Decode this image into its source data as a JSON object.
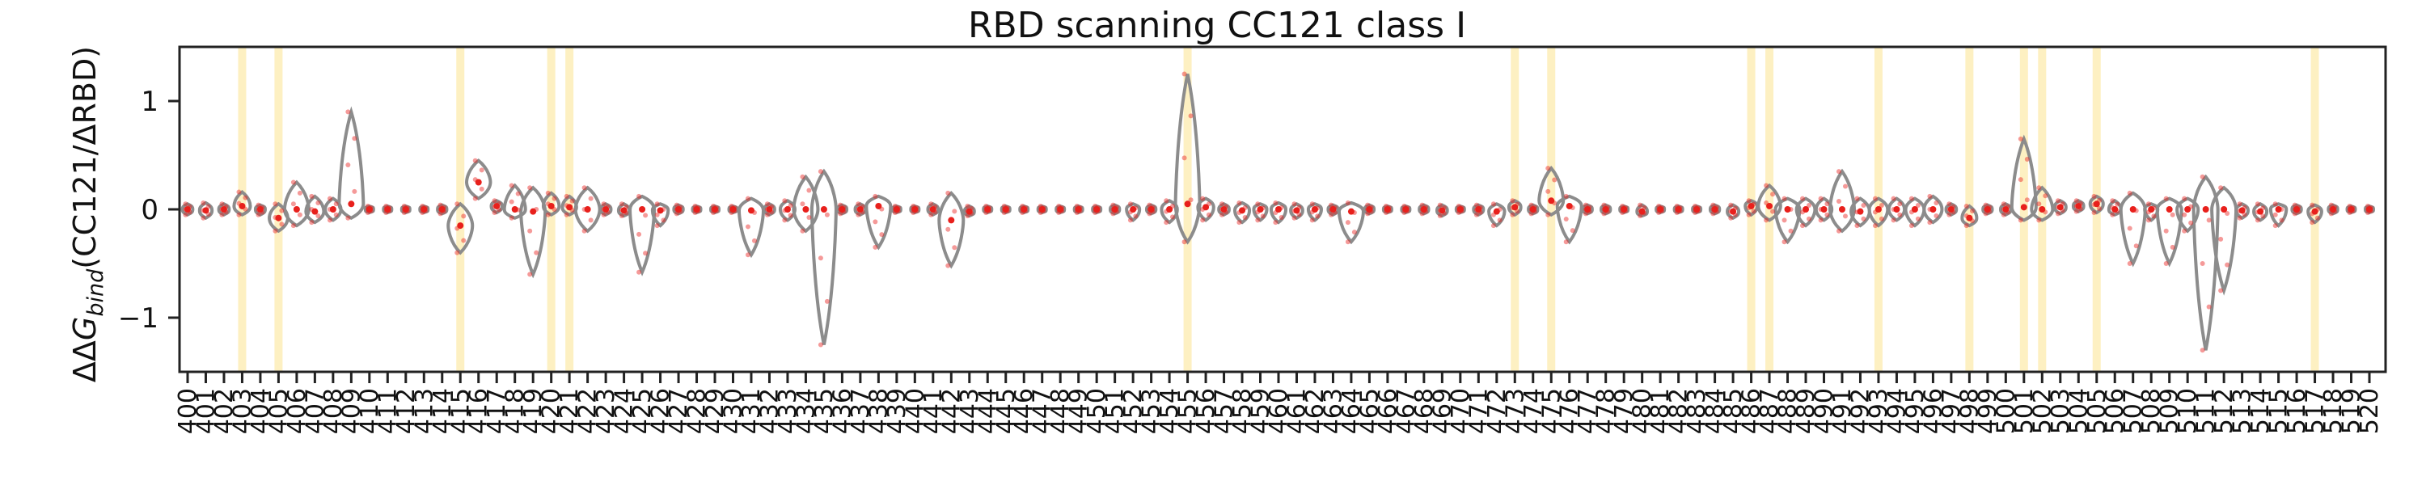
{
  "chart_data": {
    "type": "violin",
    "title": "RBD scanning CC121 class I",
    "ylabel_prefix": "ΔΔ",
    "ylabel_var": "G",
    "ylabel_sub": "bind",
    "ylabel_suffix": "(CC121/ΔRBD)",
    "ylim": [
      -1.5,
      1.5
    ],
    "yticks": [
      -1,
      0,
      1
    ],
    "xrange": [
      400,
      520
    ],
    "grid": false,
    "highlight_color": "#fdf0c2",
    "violin_color": "#8c8c8c",
    "point_color": "#e8201c",
    "highlight_sites": [
      403,
      405,
      415,
      420,
      421,
      455,
      473,
      475,
      486,
      487,
      493,
      498,
      501,
      502,
      505,
      517
    ],
    "sites": [
      {
        "site": 400,
        "median": 0.0,
        "min": -0.05,
        "max": 0.05
      },
      {
        "site": 401,
        "median": -0.01,
        "min": -0.08,
        "max": 0.06
      },
      {
        "site": 402,
        "median": 0.0,
        "min": -0.05,
        "max": 0.05
      },
      {
        "site": 403,
        "median": 0.03,
        "min": -0.05,
        "max": 0.16
      },
      {
        "site": 404,
        "median": 0.0,
        "min": -0.05,
        "max": 0.04
      },
      {
        "site": 405,
        "median": -0.08,
        "min": -0.2,
        "max": 0.05
      },
      {
        "site": 406,
        "median": 0.0,
        "min": -0.15,
        "max": 0.25
      },
      {
        "site": 407,
        "median": -0.02,
        "min": -0.12,
        "max": 0.12
      },
      {
        "site": 408,
        "median": 0.0,
        "min": -0.1,
        "max": 0.1
      },
      {
        "site": 409,
        "median": 0.05,
        "min": -0.08,
        "max": 0.9
      },
      {
        "site": 410,
        "median": 0.0,
        "min": -0.03,
        "max": 0.03
      },
      {
        "site": 411,
        "median": 0.0,
        "min": -0.03,
        "max": 0.03
      },
      {
        "site": 412,
        "median": 0.0,
        "min": -0.03,
        "max": 0.03
      },
      {
        "site": 413,
        "median": 0.0,
        "min": -0.03,
        "max": 0.03
      },
      {
        "site": 414,
        "median": 0.0,
        "min": -0.04,
        "max": 0.04
      },
      {
        "site": 415,
        "median": -0.15,
        "min": -0.4,
        "max": 0.05
      },
      {
        "site": 416,
        "median": 0.25,
        "min": 0.1,
        "max": 0.45
      },
      {
        "site": 417,
        "median": 0.03,
        "min": -0.03,
        "max": 0.08
      },
      {
        "site": 418,
        "median": 0.0,
        "min": -0.08,
        "max": 0.22
      },
      {
        "site": 419,
        "median": -0.02,
        "min": -0.6,
        "max": 0.2
      },
      {
        "site": 420,
        "median": 0.03,
        "min": -0.05,
        "max": 0.15
      },
      {
        "site": 421,
        "median": 0.02,
        "min": -0.05,
        "max": 0.12
      },
      {
        "site": 422,
        "median": 0.0,
        "min": -0.2,
        "max": 0.2
      },
      {
        "site": 423,
        "median": 0.0,
        "min": -0.05,
        "max": 0.05
      },
      {
        "site": 424,
        "median": -0.01,
        "min": -0.06,
        "max": 0.05
      },
      {
        "site": 425,
        "median": 0.0,
        "min": -0.58,
        "max": 0.12
      },
      {
        "site": 426,
        "median": -0.01,
        "min": -0.15,
        "max": 0.05
      },
      {
        "site": 427,
        "median": 0.0,
        "min": -0.04,
        "max": 0.04
      },
      {
        "site": 428,
        "median": 0.0,
        "min": -0.03,
        "max": 0.03
      },
      {
        "site": 429,
        "median": 0.0,
        "min": -0.03,
        "max": 0.03
      },
      {
        "site": 430,
        "median": 0.0,
        "min": -0.03,
        "max": 0.03
      },
      {
        "site": 431,
        "median": -0.01,
        "min": -0.42,
        "max": 0.1
      },
      {
        "site": 432,
        "median": 0.0,
        "min": -0.05,
        "max": 0.05
      },
      {
        "site": 433,
        "median": 0.0,
        "min": -0.1,
        "max": 0.08
      },
      {
        "site": 434,
        "median": 0.0,
        "min": -0.2,
        "max": 0.3
      },
      {
        "site": 435,
        "median": 0.0,
        "min": -1.25,
        "max": 0.35
      },
      {
        "site": 436,
        "median": 0.0,
        "min": -0.04,
        "max": 0.04
      },
      {
        "site": 437,
        "median": 0.0,
        "min": -0.05,
        "max": 0.05
      },
      {
        "site": 438,
        "median": 0.03,
        "min": -0.35,
        "max": 0.12
      },
      {
        "site": 439,
        "median": 0.0,
        "min": -0.03,
        "max": 0.03
      },
      {
        "site": 440,
        "median": 0.0,
        "min": -0.03,
        "max": 0.03
      },
      {
        "site": 441,
        "median": 0.0,
        "min": -0.05,
        "max": 0.05
      },
      {
        "site": 442,
        "median": -0.1,
        "min": -0.52,
        "max": 0.15
      },
      {
        "site": 443,
        "median": -0.02,
        "min": -0.06,
        "max": 0.03
      },
      {
        "site": 444,
        "median": 0.0,
        "min": -0.03,
        "max": 0.03
      },
      {
        "site": 445,
        "median": 0.0,
        "min": -0.03,
        "max": 0.03
      },
      {
        "site": 446,
        "median": 0.0,
        "min": -0.03,
        "max": 0.03
      },
      {
        "site": 447,
        "median": 0.0,
        "min": -0.03,
        "max": 0.03
      },
      {
        "site": 448,
        "median": 0.0,
        "min": -0.03,
        "max": 0.03
      },
      {
        "site": 449,
        "median": 0.0,
        "min": -0.03,
        "max": 0.03
      },
      {
        "site": 450,
        "median": 0.0,
        "min": -0.03,
        "max": 0.03
      },
      {
        "site": 451,
        "median": 0.0,
        "min": -0.04,
        "max": 0.04
      },
      {
        "site": 452,
        "median": 0.0,
        "min": -0.1,
        "max": 0.05
      },
      {
        "site": 453,
        "median": 0.0,
        "min": -0.04,
        "max": 0.04
      },
      {
        "site": 454,
        "median": 0.0,
        "min": -0.12,
        "max": 0.08
      },
      {
        "site": 455,
        "median": 0.05,
        "min": -0.3,
        "max": 1.25
      },
      {
        "site": 456,
        "median": 0.02,
        "min": -0.1,
        "max": 0.1
      },
      {
        "site": 457,
        "median": 0.0,
        "min": -0.05,
        "max": 0.05
      },
      {
        "site": 458,
        "median": -0.01,
        "min": -0.12,
        "max": 0.06
      },
      {
        "site": 459,
        "median": 0.0,
        "min": -0.1,
        "max": 0.05
      },
      {
        "site": 460,
        "median": 0.0,
        "min": -0.12,
        "max": 0.06
      },
      {
        "site": 461,
        "median": -0.01,
        "min": -0.08,
        "max": 0.05
      },
      {
        "site": 462,
        "median": 0.0,
        "min": -0.1,
        "max": 0.05
      },
      {
        "site": 463,
        "median": 0.0,
        "min": -0.05,
        "max": 0.04
      },
      {
        "site": 464,
        "median": -0.02,
        "min": -0.3,
        "max": 0.06
      },
      {
        "site": 465,
        "median": 0.0,
        "min": -0.04,
        "max": 0.04
      },
      {
        "site": 466,
        "median": 0.0,
        "min": -0.03,
        "max": 0.03
      },
      {
        "site": 467,
        "median": 0.0,
        "min": -0.03,
        "max": 0.03
      },
      {
        "site": 468,
        "median": 0.0,
        "min": -0.04,
        "max": 0.04
      },
      {
        "site": 469,
        "median": -0.01,
        "min": -0.06,
        "max": 0.04
      },
      {
        "site": 470,
        "median": 0.0,
        "min": -0.03,
        "max": 0.03
      },
      {
        "site": 471,
        "median": 0.0,
        "min": -0.05,
        "max": 0.04
      },
      {
        "site": 472,
        "median": -0.02,
        "min": -0.15,
        "max": 0.05
      },
      {
        "site": 473,
        "median": 0.02,
        "min": -0.05,
        "max": 0.08
      },
      {
        "site": 474,
        "median": 0.0,
        "min": -0.04,
        "max": 0.04
      },
      {
        "site": 475,
        "median": 0.08,
        "min": -0.05,
        "max": 0.38
      },
      {
        "site": 476,
        "median": 0.03,
        "min": -0.3,
        "max": 0.12
      },
      {
        "site": 477,
        "median": 0.0,
        "min": -0.04,
        "max": 0.04
      },
      {
        "site": 478,
        "median": 0.0,
        "min": -0.04,
        "max": 0.04
      },
      {
        "site": 479,
        "median": 0.0,
        "min": -0.03,
        "max": 0.03
      },
      {
        "site": 480,
        "median": -0.02,
        "min": -0.06,
        "max": 0.04
      },
      {
        "site": 481,
        "median": 0.0,
        "min": -0.03,
        "max": 0.03
      },
      {
        "site": 482,
        "median": 0.0,
        "min": -0.03,
        "max": 0.03
      },
      {
        "site": 483,
        "median": 0.0,
        "min": -0.03,
        "max": 0.03
      },
      {
        "site": 484,
        "median": 0.0,
        "min": -0.04,
        "max": 0.04
      },
      {
        "site": 485,
        "median": -0.02,
        "min": -0.08,
        "max": 0.04
      },
      {
        "site": 486,
        "median": 0.03,
        "min": -0.05,
        "max": 0.08
      },
      {
        "site": 487,
        "median": 0.03,
        "min": -0.1,
        "max": 0.22
      },
      {
        "site": 488,
        "median": 0.0,
        "min": -0.3,
        "max": 0.1
      },
      {
        "site": 489,
        "median": 0.0,
        "min": -0.15,
        "max": 0.1
      },
      {
        "site": 490,
        "median": 0.0,
        "min": -0.1,
        "max": 0.1
      },
      {
        "site": 491,
        "median": 0.0,
        "min": -0.2,
        "max": 0.35
      },
      {
        "site": 492,
        "median": -0.02,
        "min": -0.15,
        "max": 0.1
      },
      {
        "site": 493,
        "median": 0.0,
        "min": -0.15,
        "max": 0.1
      },
      {
        "site": 494,
        "median": 0.0,
        "min": -0.1,
        "max": 0.1
      },
      {
        "site": 495,
        "median": 0.0,
        "min": -0.15,
        "max": 0.1
      },
      {
        "site": 496,
        "median": 0.0,
        "min": -0.12,
        "max": 0.12
      },
      {
        "site": 497,
        "median": 0.0,
        "min": -0.05,
        "max": 0.05
      },
      {
        "site": 498,
        "median": -0.08,
        "min": -0.15,
        "max": 0.03
      },
      {
        "site": 499,
        "median": 0.0,
        "min": -0.04,
        "max": 0.04
      },
      {
        "site": 500,
        "median": 0.0,
        "min": -0.05,
        "max": 0.05
      },
      {
        "site": 501,
        "median": 0.02,
        "min": -0.1,
        "max": 0.65
      },
      {
        "site": 502,
        "median": 0.0,
        "min": -0.1,
        "max": 0.2
      },
      {
        "site": 503,
        "median": 0.02,
        "min": -0.04,
        "max": 0.08
      },
      {
        "site": 504,
        "median": 0.03,
        "min": -0.02,
        "max": 0.08
      },
      {
        "site": 505,
        "median": 0.05,
        "min": -0.03,
        "max": 0.12
      },
      {
        "site": 506,
        "median": 0.0,
        "min": -0.05,
        "max": 0.08
      },
      {
        "site": 507,
        "median": 0.0,
        "min": -0.5,
        "max": 0.15
      },
      {
        "site": 508,
        "median": 0.0,
        "min": -0.1,
        "max": 0.05
      },
      {
        "site": 509,
        "median": 0.0,
        "min": -0.5,
        "max": 0.1
      },
      {
        "site": 510,
        "median": 0.0,
        "min": -0.2,
        "max": 0.1
      },
      {
        "site": 511,
        "median": 0.0,
        "min": -1.3,
        "max": 0.3
      },
      {
        "site": 512,
        "median": 0.0,
        "min": -0.75,
        "max": 0.2
      },
      {
        "site": 513,
        "median": -0.01,
        "min": -0.08,
        "max": 0.05
      },
      {
        "site": 514,
        "median": -0.02,
        "min": -0.1,
        "max": 0.05
      },
      {
        "site": 515,
        "median": 0.0,
        "min": -0.15,
        "max": 0.05
      },
      {
        "site": 516,
        "median": 0.0,
        "min": -0.04,
        "max": 0.04
      },
      {
        "site": 517,
        "median": -0.02,
        "min": -0.12,
        "max": 0.04
      },
      {
        "site": 518,
        "median": 0.0,
        "min": -0.04,
        "max": 0.04
      },
      {
        "site": 519,
        "median": 0.0,
        "min": -0.03,
        "max": 0.03
      },
      {
        "site": 520,
        "median": 0.0,
        "min": -0.03,
        "max": 0.03
      }
    ]
  }
}
